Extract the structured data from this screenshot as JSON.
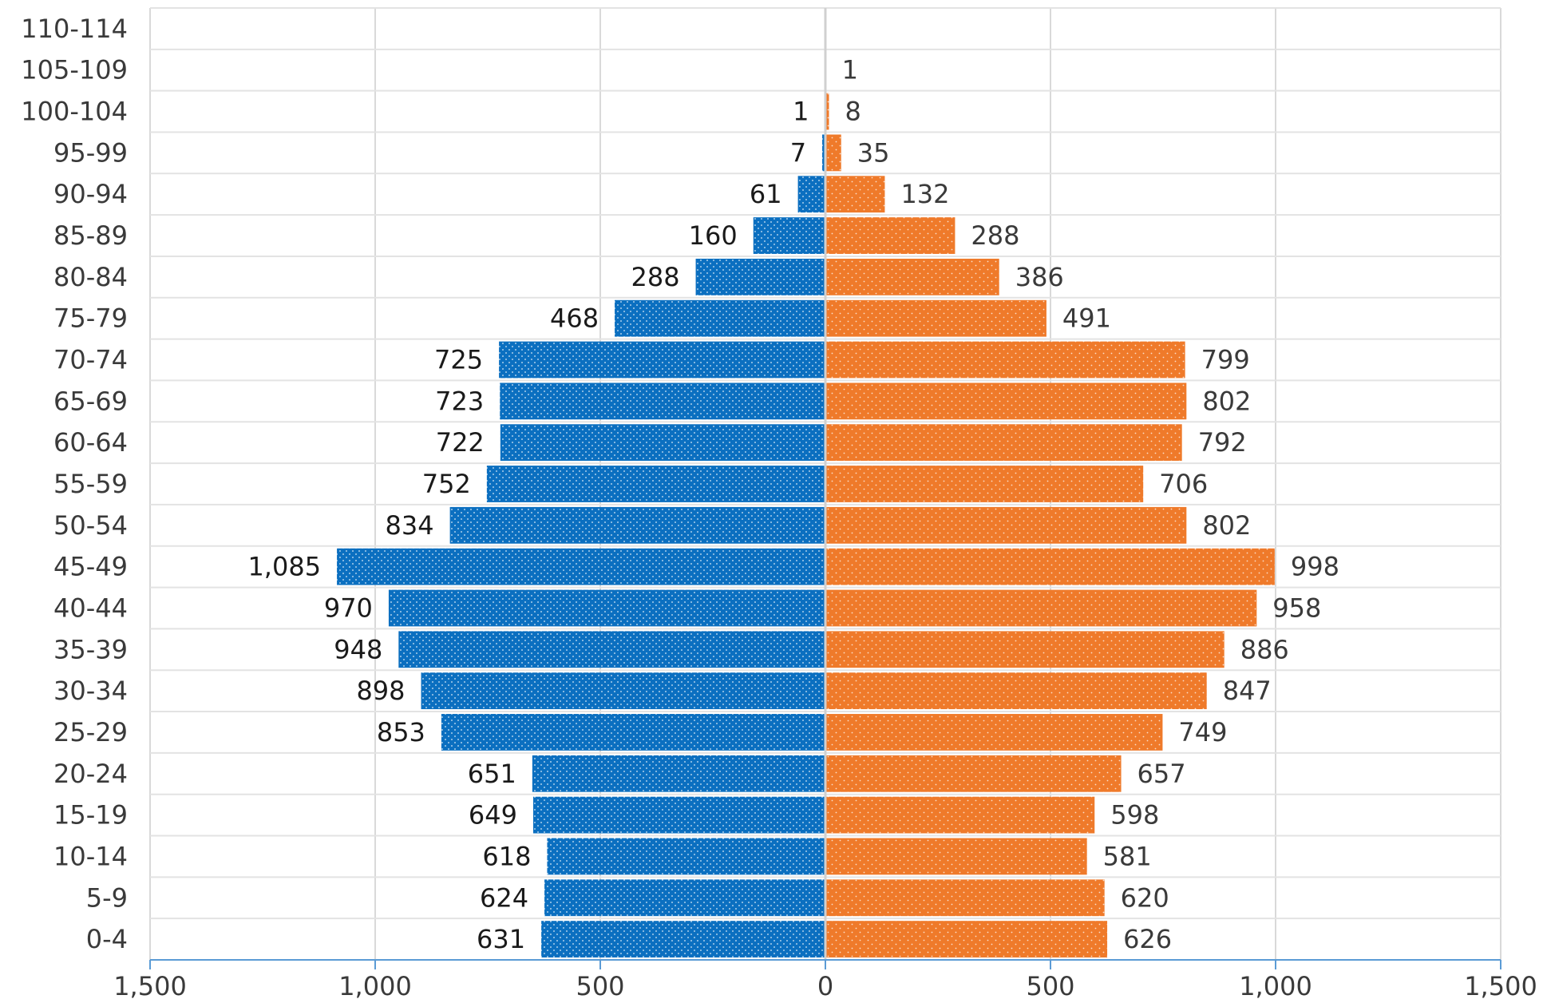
{
  "chart_data": {
    "type": "bar",
    "orientation": "horizontal",
    "layout": "population-pyramid",
    "title": "",
    "xlabel": "",
    "ylabel": "",
    "xlim": [
      -1500,
      1500
    ],
    "x_ticks": [
      -1500,
      -1000,
      -500,
      0,
      500,
      1000,
      1500
    ],
    "x_tick_labels": [
      "1,500",
      "1,000",
      "500",
      "0",
      "500",
      "1,000",
      "1,500"
    ],
    "grid": true,
    "categories": [
      "0-4",
      "5-9",
      "10-14",
      "15-19",
      "20-24",
      "25-29",
      "30-34",
      "35-39",
      "40-44",
      "45-49",
      "50-54",
      "55-59",
      "60-64",
      "65-69",
      "70-74",
      "75-79",
      "80-84",
      "85-89",
      "90-94",
      "95-99",
      "100-104",
      "105-109",
      "110-114"
    ],
    "series": [
      {
        "side": "left",
        "color": "#0b6fc0",
        "values": [
          631,
          624,
          618,
          649,
          651,
          853,
          898,
          948,
          970,
          1085,
          834,
          752,
          722,
          723,
          725,
          468,
          288,
          160,
          61,
          7,
          1,
          0,
          0
        ],
        "labels": [
          "631",
          "624",
          "618",
          "649",
          "651",
          "853",
          "898",
          "948",
          "970",
          "1,085",
          "834",
          "752",
          "722",
          "723",
          "725",
          "468",
          "288",
          "160",
          "61",
          "7",
          "1",
          "",
          ""
        ]
      },
      {
        "side": "right",
        "color": "#ef7a2a",
        "values": [
          626,
          620,
          581,
          598,
          657,
          749,
          847,
          886,
          958,
          998,
          802,
          706,
          792,
          802,
          799,
          491,
          386,
          288,
          132,
          35,
          8,
          1,
          0
        ],
        "labels": [
          "626",
          "620",
          "581",
          "598",
          "657",
          "749",
          "847",
          "886",
          "958",
          "998",
          "802",
          "706",
          "792",
          "802",
          "799",
          "491",
          "386",
          "288",
          "132",
          "35",
          "8",
          "1",
          ""
        ]
      }
    ]
  }
}
